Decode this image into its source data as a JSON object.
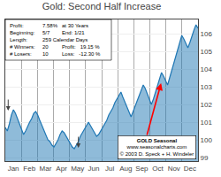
{
  "chart_data": {
    "type": "area",
    "title": "Gold: Second Half Increase",
    "info_lines": [
      [
        "Profit:",
        "7.58%",
        "at 30 Years"
      ],
      [
        "Beginning:",
        "5/7",
        "End: 1/21"
      ],
      [
        "Length:",
        "259 Calendar Days"
      ],
      [
        "# Winners:",
        "20",
        "Profit:   19.15 %"
      ],
      [
        "# Losers:",
        "10",
        "Loss:   -12.30 %"
      ]
    ],
    "notes": [
      "GOLD Seasonal",
      "www.seasonalcharts.com",
      "© 2003 D. Speck + H. Windeler"
    ],
    "x": [
      0,
      0.1263,
      0.2526,
      0.3789,
      0.5053,
      0.6316,
      0.7579,
      0.8842,
      1.0105,
      1.1368,
      1.2632,
      1.3895,
      1.5158,
      1.6421,
      1.7684,
      1.8947,
      2.0211,
      2.1474,
      2.2737,
      2.4,
      2.5263,
      2.6526,
      2.7789,
      2.9053,
      3.0316,
      3.1579,
      3.2842,
      3.4105,
      3.5368,
      3.6632,
      3.7895,
      3.9158,
      4.0421,
      4.1684,
      4.2947,
      4.4211,
      4.5474,
      4.6737,
      4.8,
      4.9263,
      5.0526,
      5.1789,
      5.3053,
      5.4316,
      5.5579,
      5.6842,
      5.8105,
      5.9368,
      6.0632,
      6.1895,
      6.3158,
      6.4421,
      6.5684,
      6.6947,
      6.8211,
      6.9474,
      7.0737,
      7.2,
      7.3263,
      7.4526,
      7.5789,
      7.7053,
      7.8316,
      7.9579,
      8.0842,
      8.2105,
      8.3368,
      8.4632,
      8.5895,
      8.7158,
      8.8421,
      8.9684,
      9.0947,
      9.2211,
      9.3474,
      9.4737,
      9.6,
      9.7263,
      9.8526,
      9.9789,
      10.1053,
      10.2316,
      10.3579,
      10.4842,
      10.6105,
      10.7368,
      10.8632,
      10.9895,
      11.1158,
      11.2421,
      11.3684,
      11.4947,
      11.6211,
      11.7474,
      11.8737,
      12
    ],
    "values": [
      100.7,
      100.5,
      100.9,
      101.4,
      101.7,
      101.5,
      101.2,
      100.9,
      100.6,
      100.3,
      100.5,
      100.8,
      101.0,
      101.2,
      101.5,
      101.6,
      101.4,
      101.1,
      100.8,
      100.5,
      100.3,
      100.0,
      99.9,
      99.7,
      99.6,
      99.8,
      100.0,
      100.3,
      100.5,
      100.4,
      100.2,
      100.0,
      99.8,
      99.6,
      99.5,
      99.7,
      99.9,
      100.2,
      100.4,
      100.6,
      100.8,
      101.0,
      100.8,
      100.6,
      100.4,
      100.2,
      100.3,
      100.5,
      100.7,
      100.9,
      101.1,
      101.4,
      101.6,
      101.8,
      102.1,
      102.3,
      102.5,
      102.7,
      102.4,
      102.1,
      101.8,
      101.5,
      101.3,
      101.6,
      101.9,
      102.2,
      102.5,
      102.8,
      103.1,
      102.9,
      102.6,
      102.3,
      102.0,
      102.3,
      102.7,
      103.1,
      103.5,
      103.8,
      103.6,
      103.3,
      103.1,
      103.5,
      103.9,
      104.3,
      104.7,
      105.1,
      105.5,
      105.9,
      105.7,
      105.4,
      105.2,
      105.5,
      105.9,
      106.2,
      106.5,
      106.3
    ],
    "xlim": [
      0,
      12
    ],
    "xticks": [
      {
        "value": 0.5,
        "label": "Jan"
      },
      {
        "value": 1.5,
        "label": "Feb"
      },
      {
        "value": 2.5,
        "label": "Mar"
      },
      {
        "value": 3.5,
        "label": "Apr"
      },
      {
        "value": 4.5,
        "label": "May"
      },
      {
        "value": 5.5,
        "label": "Jun"
      },
      {
        "value": 6.5,
        "label": "Jul"
      },
      {
        "value": 7.5,
        "label": "Aug"
      },
      {
        "value": 8.5,
        "label": "Sep"
      },
      {
        "value": 9.5,
        "label": "Oct"
      },
      {
        "value": 10.5,
        "label": "Nov"
      },
      {
        "value": 11.5,
        "label": "Dec"
      }
    ],
    "ylim": [
      98.8,
      106.8
    ],
    "yticks": [
      99,
      100,
      101,
      102,
      103,
      104,
      105,
      106
    ],
    "grid": true,
    "annotations": [
      {
        "x": 9.7,
        "y": 103.2,
        "x_tail": 8.8,
        "y_tail": 100.2,
        "color": "red"
      },
      {
        "x": 0.18,
        "y": 101.65,
        "x_tail": 0.18,
        "y_tail": 102.35
      },
      {
        "x": 4.55,
        "y": 99.55,
        "x_tail": 4.55,
        "y_tail": 100.25
      }
    ]
  }
}
